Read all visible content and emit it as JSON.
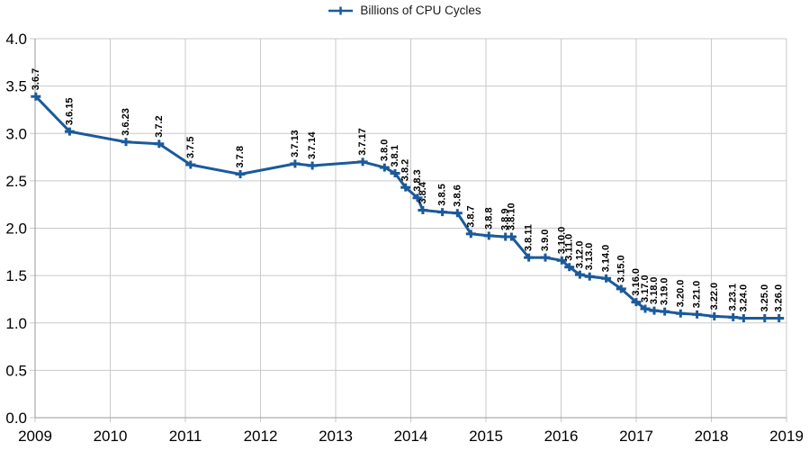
{
  "colors": {
    "series": "#1b5a9b",
    "grid": "#c9c9c9",
    "axis": "#9a9a9a",
    "tick_text": "#000000",
    "data_label": "#000000",
    "legend_text": "#1a1a1a",
    "background": "#ffffff"
  },
  "legend": {
    "label": "Billions of CPU Cycles",
    "marker": "plus-on-line"
  },
  "chart_data": {
    "type": "line",
    "title": "",
    "legend_position": "top-center",
    "grid": true,
    "marker": "plus",
    "line_width": 3,
    "x_axis": {
      "min": 2009,
      "max": 2019,
      "ticks": [
        {
          "value": 2009,
          "label": "2009"
        },
        {
          "value": 2010,
          "label": "2010"
        },
        {
          "value": 2011,
          "label": "2011"
        },
        {
          "value": 2012,
          "label": "2012"
        },
        {
          "value": 2013,
          "label": "2013"
        },
        {
          "value": 2014,
          "label": "2014"
        },
        {
          "value": 2015,
          "label": "2015"
        },
        {
          "value": 2016,
          "label": "2016"
        },
        {
          "value": 2017,
          "label": "2017"
        },
        {
          "value": 2018,
          "label": "2018"
        },
        {
          "value": 2019,
          "label": "2019"
        }
      ]
    },
    "y_axis": {
      "min": 0.0,
      "max": 4.0,
      "ticks": [
        {
          "value": 0.0,
          "label": "0.0"
        },
        {
          "value": 0.5,
          "label": "0.5"
        },
        {
          "value": 1.0,
          "label": "1.0"
        },
        {
          "value": 1.5,
          "label": "1.5"
        },
        {
          "value": 2.0,
          "label": "2.0"
        },
        {
          "value": 2.5,
          "label": "2.5"
        },
        {
          "value": 3.0,
          "label": "3.0"
        },
        {
          "value": 3.5,
          "label": "3.5"
        },
        {
          "value": 4.0,
          "label": "4.0"
        }
      ]
    },
    "series": [
      {
        "name": "Billions of CPU Cycles",
        "points": [
          {
            "label": "3.6.7",
            "x": 2009.01,
            "y": 3.39
          },
          {
            "label": "3.6.15",
            "x": 2009.46,
            "y": 3.02
          },
          {
            "label": "3.6.23",
            "x": 2010.21,
            "y": 2.91
          },
          {
            "label": "3.7.2",
            "x": 2010.65,
            "y": 2.89
          },
          {
            "label": "3.7.5",
            "x": 2011.07,
            "y": 2.67
          },
          {
            "label": "3.7.8",
            "x": 2011.73,
            "y": 2.57
          },
          {
            "label": "3.7.13",
            "x": 2012.46,
            "y": 2.68
          },
          {
            "label": "3.7.14",
            "x": 2012.69,
            "y": 2.66
          },
          {
            "label": "3.7.17",
            "x": 2013.36,
            "y": 2.7
          },
          {
            "label": "3.8.0",
            "x": 2013.65,
            "y": 2.64
          },
          {
            "label": "3.8.1",
            "x": 2013.79,
            "y": 2.58
          },
          {
            "label": "3.8.2",
            "x": 2013.93,
            "y": 2.43
          },
          {
            "label": "3.8.3",
            "x": 2014.09,
            "y": 2.32
          },
          {
            "label": "3.8.4",
            "x": 2014.16,
            "y": 2.19
          },
          {
            "label": "3.8.5",
            "x": 2014.42,
            "y": 2.17
          },
          {
            "label": "3.8.6",
            "x": 2014.62,
            "y": 2.16
          },
          {
            "label": "3.8.7",
            "x": 2014.8,
            "y": 1.94
          },
          {
            "label": "3.8.8",
            "x": 2015.04,
            "y": 1.92
          },
          {
            "label": "3.8.9",
            "x": 2015.26,
            "y": 1.91
          },
          {
            "label": "3.8.10",
            "x": 2015.34,
            "y": 1.91
          },
          {
            "label": "3.8.11",
            "x": 2015.57,
            "y": 1.69
          },
          {
            "label": "3.9.0",
            "x": 2015.79,
            "y": 1.69
          },
          {
            "label": "3.10.0",
            "x": 2016.01,
            "y": 1.66
          },
          {
            "label": "3.11.0",
            "x": 2016.11,
            "y": 1.59
          },
          {
            "label": "3.12.0",
            "x": 2016.25,
            "y": 1.51
          },
          {
            "label": "3.13.0",
            "x": 2016.38,
            "y": 1.49
          },
          {
            "label": "3.14.0",
            "x": 2016.6,
            "y": 1.47
          },
          {
            "label": "3.15.0",
            "x": 2016.8,
            "y": 1.36
          },
          {
            "label": "3.16.0",
            "x": 2017.0,
            "y": 1.22
          },
          {
            "label": "3.17.0",
            "x": 2017.12,
            "y": 1.15
          },
          {
            "label": "3.18.0",
            "x": 2017.24,
            "y": 1.13
          },
          {
            "label": "3.19.0",
            "x": 2017.38,
            "y": 1.12
          },
          {
            "label": "3.20.0",
            "x": 2017.59,
            "y": 1.1
          },
          {
            "label": "3.21.0",
            "x": 2017.81,
            "y": 1.09
          },
          {
            "label": "3.22.0",
            "x": 2018.04,
            "y": 1.07
          },
          {
            "label": "3.23.1",
            "x": 2018.29,
            "y": 1.06
          },
          {
            "label": "3.24.0",
            "x": 2018.43,
            "y": 1.05
          },
          {
            "label": "3.25.0",
            "x": 2018.71,
            "y": 1.05
          },
          {
            "label": "3.26.0",
            "x": 2018.9,
            "y": 1.05
          }
        ]
      }
    ]
  }
}
